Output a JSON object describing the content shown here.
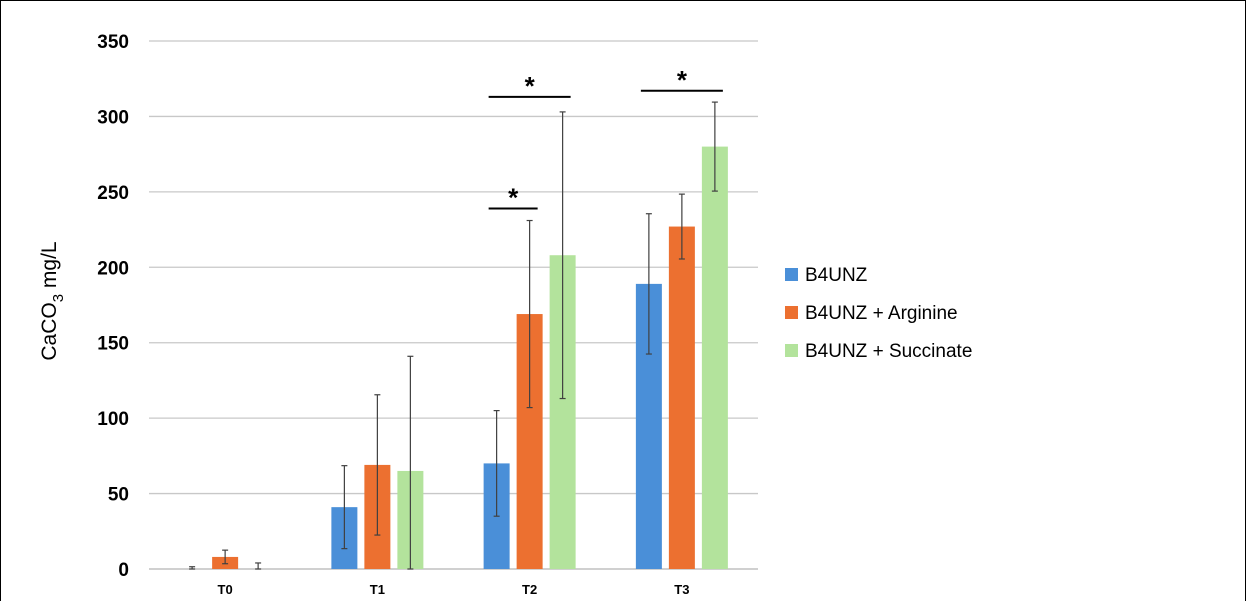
{
  "chart_data": {
    "type": "bar",
    "title": "",
    "xlabel": "",
    "ylabel": "CaCO",
    "ylabel_subscript": "3",
    "ylabel_unit": " mg/L",
    "ylim": [
      0,
      350
    ],
    "yticks": [
      0,
      50,
      100,
      150,
      200,
      250,
      300,
      350
    ],
    "grid": true,
    "legend_position": "right",
    "categories": [
      "T0",
      "T1",
      "T2",
      "T3"
    ],
    "series": [
      {
        "name": "B4UNZ",
        "color": "#4a8fd8",
        "values": [
          0,
          41,
          70,
          189
        ],
        "errors": [
          1.5,
          27.5,
          35,
          46.5
        ]
      },
      {
        "name": "B4UNZ + Arginine",
        "color": "#ec7030",
        "values": [
          8,
          69,
          169,
          227
        ],
        "errors": [
          4.5,
          46.5,
          62,
          21.5
        ]
      },
      {
        "name": "B4UNZ + Succinate",
        "color": "#b3e39c",
        "values": [
          0,
          65,
          208,
          280
        ],
        "errors": [
          4,
          76,
          95,
          29.5
        ]
      }
    ],
    "annotations": [
      {
        "text": "*",
        "category": "T2",
        "from_series": 0,
        "to_series": 1,
        "y": 239
      },
      {
        "text": "*",
        "category": "T2",
        "from_series": 0,
        "to_series": 2,
        "y": 313
      },
      {
        "text": "*",
        "category": "T3",
        "from_series": 0,
        "to_series": 2,
        "y": 317
      }
    ]
  }
}
